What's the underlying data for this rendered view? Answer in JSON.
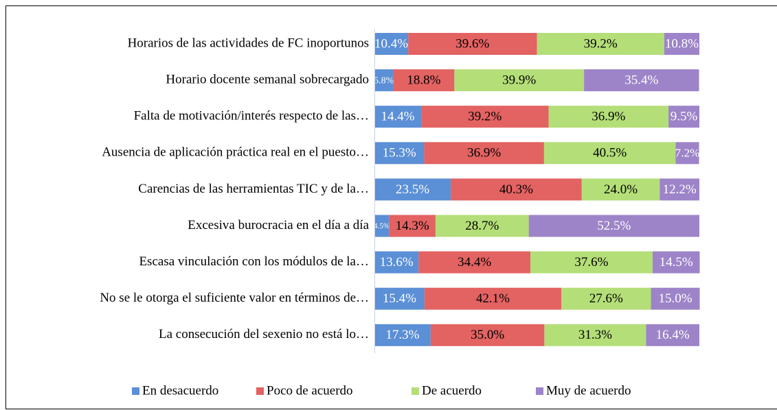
{
  "chart_data": {
    "type": "stacked-bar-horizontal",
    "categories": [
      "Horarios de las actividades de FC inoportunos",
      "Horario docente semanal sobrecargado",
      "Falta de motivación/interés respecto de las…",
      "Ausencia de aplicación práctica real en el puesto…",
      "Carencias de las herramientas TIC y de la…",
      "Excesiva burocracia en el día a día",
      "Escasa vinculación con los módulos de la…",
      "No se le otorga el suficiente valor en términos de…",
      "La consecución del sexenio no está lo…"
    ],
    "series": [
      {
        "name": "En desacuerdo",
        "color": "#5b8fd6",
        "values": [
          10.4,
          5.8,
          14.4,
          15.3,
          23.5,
          4.5,
          13.6,
          15.4,
          17.3
        ],
        "value_labels": [
          "10.4%",
          "5.8%",
          "14.4%",
          "15.3%",
          "23.5%",
          "4.5%",
          "13.6%",
          "15.4%",
          "17.3%"
        ]
      },
      {
        "name": "Poco de acuerdo",
        "color": "#e36262",
        "values": [
          39.6,
          18.8,
          39.2,
          36.9,
          40.3,
          14.3,
          34.4,
          42.1,
          35.0
        ],
        "value_labels": [
          "39.6%",
          "18.8%",
          "39.2%",
          "36.9%",
          "40.3%",
          "14.3%",
          "34.4%",
          "42.1%",
          "35.0%"
        ]
      },
      {
        "name": "De acuerdo",
        "color": "#b4de78",
        "values": [
          39.2,
          39.9,
          36.9,
          40.5,
          24.0,
          28.7,
          37.6,
          27.6,
          31.3
        ],
        "value_labels": [
          "39.2%",
          "39.9%",
          "36.9%",
          "40.5%",
          "24.0%",
          "28.7%",
          "37.6%",
          "27.6%",
          "31.3%"
        ]
      },
      {
        "name": "Muy de acuerdo",
        "color": "#9d84c8",
        "values": [
          10.8,
          35.4,
          9.5,
          7.2,
          12.2,
          52.5,
          14.5,
          15.0,
          16.4
        ],
        "value_labels": [
          "10.8%",
          "35.4%",
          "9.5%",
          "7.2%",
          "12.2%",
          "52.5%",
          "14.5%",
          "15.0%",
          "16.4%"
        ]
      }
    ],
    "xlim": [
      0,
      100
    ],
    "legend": "bottom"
  }
}
